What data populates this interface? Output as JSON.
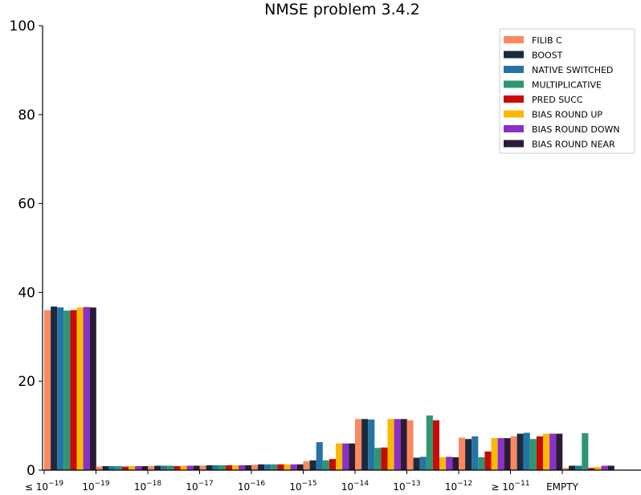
{
  "chart_data": {
    "type": "bar",
    "title": "NMSE problem 3.4.2",
    "xlabel": "",
    "ylabel": "",
    "ylim": [
      0,
      100
    ],
    "yticks": [
      "0",
      "20",
      "40",
      "60",
      "80",
      "100"
    ],
    "categories": [
      "≤ 10^-19",
      "10^-19",
      "10^-18",
      "10^-17",
      "10^-16",
      "10^-15",
      "10^-14",
      "10^-13",
      "10^-12",
      "≥ 10^-11",
      "EMPTY"
    ],
    "category_labels": [
      {
        "base": "≤ 10",
        "exp": "−19"
      },
      {
        "base": "10",
        "exp": "−19"
      },
      {
        "base": "10",
        "exp": "−18"
      },
      {
        "base": "10",
        "exp": "−17"
      },
      {
        "base": "10",
        "exp": "−16"
      },
      {
        "base": "10",
        "exp": "−15"
      },
      {
        "base": "10",
        "exp": "−14"
      },
      {
        "base": "10",
        "exp": "−13"
      },
      {
        "base": "10",
        "exp": "−12"
      },
      {
        "base": "≥ 10",
        "exp": "−11"
      },
      {
        "base": "EMPTY",
        "exp": ""
      }
    ],
    "legend_position": "top-right",
    "grid": false,
    "series": [
      {
        "name": "FILIB C",
        "color": "#fb8861",
        "values": [
          36.0,
          0.8,
          0.9,
          1.0,
          1.2,
          2.0,
          11.5,
          11.2,
          7.3,
          7.6,
          0.5
        ]
      },
      {
        "name": "BOOST",
        "color": "#1a2b3e",
        "values": [
          36.8,
          0.9,
          1.0,
          1.1,
          1.3,
          2.2,
          11.5,
          2.8,
          7.0,
          8.2,
          1.0
        ]
      },
      {
        "name": "NATIVE SWITCHED",
        "color": "#2474a3",
        "values": [
          36.6,
          0.9,
          1.0,
          1.1,
          1.3,
          6.3,
          11.4,
          3.0,
          7.6,
          8.4,
          1.0
        ]
      },
      {
        "name": "MULTIPLICATIVE",
        "color": "#2e9670",
        "values": [
          35.9,
          0.9,
          1.0,
          1.1,
          1.3,
          2.2,
          5.0,
          12.3,
          2.9,
          7.0,
          8.3
        ]
      },
      {
        "name": "PRED SUCC",
        "color": "#c80a0a",
        "values": [
          36.0,
          0.8,
          0.9,
          1.1,
          1.3,
          2.5,
          5.1,
          11.2,
          4.2,
          7.6,
          0.5
        ]
      },
      {
        "name": "BIAS ROUND UP",
        "color": "#f8b900",
        "values": [
          36.6,
          0.9,
          1.0,
          1.1,
          1.3,
          6.0,
          11.5,
          2.9,
          7.2,
          8.2,
          0.7
        ]
      },
      {
        "name": "BIAS ROUND DOWN",
        "color": "#8b2fc8",
        "values": [
          36.7,
          0.9,
          1.0,
          1.1,
          1.3,
          6.0,
          11.5,
          3.0,
          7.2,
          8.2,
          1.0
        ]
      },
      {
        "name": "BIAS ROUND NEAR",
        "color": "#2b1b36",
        "values": [
          36.6,
          0.9,
          1.0,
          1.1,
          1.3,
          6.0,
          11.5,
          2.9,
          7.2,
          8.2,
          1.0
        ]
      }
    ]
  }
}
